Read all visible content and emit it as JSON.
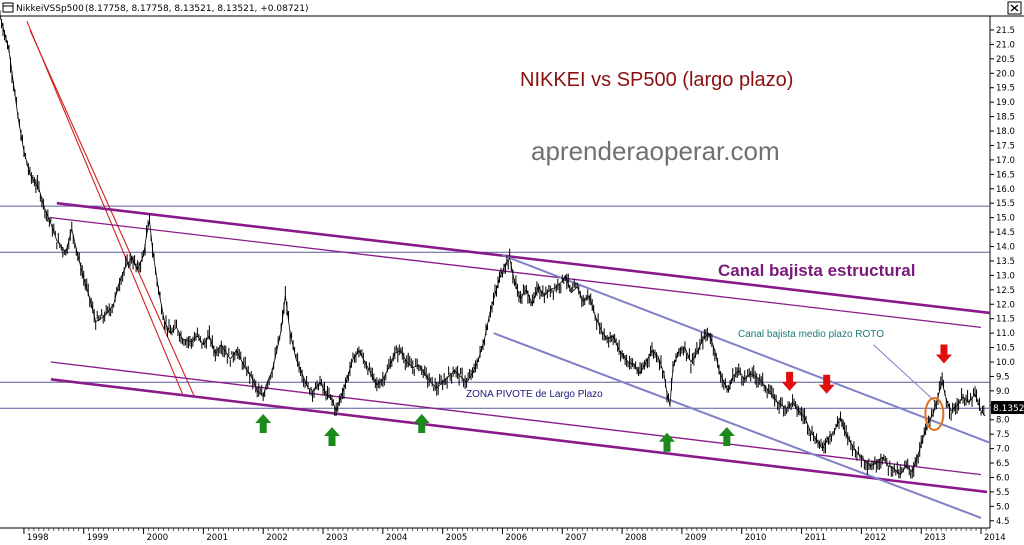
{
  "window": {
    "title": "NikkeiVSSp500",
    "ohlc_readout": "(8.17758, 8.17758, 8.13521, 8.13521, +0.08721)",
    "close_icon": "close-icon"
  },
  "price_tag": "8.1352",
  "chart_data": {
    "type": "line",
    "style": "ohlc-bars",
    "title": "NIKKEI vs SP500 (largo plazo)",
    "watermark": "aprenderaoperar.com",
    "x_axis": {
      "labels": [
        "1998",
        "1999",
        "2000",
        "2001",
        "2002",
        "2003",
        "2004",
        "2005",
        "2006",
        "2007",
        "2008",
        "2009",
        "2010",
        "2011",
        "2012",
        "2013",
        "2014"
      ],
      "range": [
        1997.6,
        2014.15
      ]
    },
    "y_axis": {
      "side": "right",
      "range": [
        4.25,
        21.95
      ],
      "ticks": [
        "4.5",
        "5.0",
        "5.5",
        "6.0",
        "6.5",
        "7.0",
        "7.5",
        "8.0",
        "8.5",
        "9.0",
        "9.5",
        "10.0",
        "10.5",
        "11.0",
        "11.5",
        "12.0",
        "12.5",
        "13.0",
        "13.5",
        "14.0",
        "14.5",
        "15.0",
        "15.5",
        "16.0",
        "16.5",
        "17.0",
        "17.5",
        "18.0",
        "18.5",
        "19.0",
        "19.5",
        "20.0",
        "20.5",
        "21.0",
        "21.5"
      ],
      "grid": false
    },
    "colors": {
      "price": "#000000",
      "red_trend": "#d02020",
      "structural_channel": "#8a1a8a",
      "medium_channel": "#8080c8",
      "horizontal_levels": "#5a5a9a",
      "arrow_up": "#1a8a1a",
      "arrow_down": "#e01010",
      "circle": "#e07020",
      "title": "#8a1010",
      "watermark": "#707070",
      "annotation_structural": "#7a1a7a",
      "annotation_medium": "#1a7a7a",
      "annotation_pivot": "#1a1a7a"
    },
    "series": [
      {
        "points": [
          [
            1997.6,
            22.0
          ],
          [
            1997.75,
            20.8
          ],
          [
            1997.9,
            18.5
          ],
          [
            1998.0,
            17.3
          ],
          [
            1998.1,
            16.5
          ],
          [
            1998.25,
            16.0
          ],
          [
            1998.35,
            15.3
          ],
          [
            1998.45,
            14.8
          ],
          [
            1998.55,
            14.2
          ],
          [
            1998.7,
            13.8
          ],
          [
            1998.8,
            14.6
          ],
          [
            1998.9,
            13.7
          ],
          [
            1999.0,
            12.9
          ],
          [
            1999.1,
            12.2
          ],
          [
            1999.2,
            11.4
          ],
          [
            1999.35,
            11.6
          ],
          [
            1999.5,
            12.0
          ],
          [
            1999.6,
            12.8
          ],
          [
            1999.7,
            13.3
          ],
          [
            1999.8,
            13.6
          ],
          [
            1999.9,
            13.2
          ],
          [
            2000.0,
            13.7
          ],
          [
            2000.05,
            14.4
          ],
          [
            2000.1,
            14.9
          ],
          [
            2000.15,
            13.9
          ],
          [
            2000.25,
            12.5
          ],
          [
            2000.35,
            11.4
          ],
          [
            2000.45,
            11.0
          ],
          [
            2000.55,
            11.2
          ],
          [
            2000.65,
            10.8
          ],
          [
            2000.8,
            10.7
          ],
          [
            2000.9,
            10.9
          ],
          [
            2001.0,
            10.6
          ],
          [
            2001.1,
            10.9
          ],
          [
            2001.2,
            10.3
          ],
          [
            2001.3,
            10.6
          ],
          [
            2001.45,
            10.1
          ],
          [
            2001.55,
            10.4
          ],
          [
            2001.7,
            9.8
          ],
          [
            2001.8,
            9.5
          ],
          [
            2001.9,
            9.0
          ],
          [
            2002.0,
            8.8
          ],
          [
            2002.05,
            9.2
          ],
          [
            2002.15,
            9.7
          ],
          [
            2002.25,
            10.6
          ],
          [
            2002.3,
            11.1
          ],
          [
            2002.37,
            12.3
          ],
          [
            2002.45,
            11.0
          ],
          [
            2002.55,
            10.1
          ],
          [
            2002.65,
            9.6
          ],
          [
            2002.75,
            9.1
          ],
          [
            2002.85,
            9.0
          ],
          [
            2002.95,
            9.3
          ],
          [
            2003.05,
            8.9
          ],
          [
            2003.15,
            8.7
          ],
          [
            2003.22,
            8.3
          ],
          [
            2003.3,
            8.8
          ],
          [
            2003.4,
            9.4
          ],
          [
            2003.5,
            10.1
          ],
          [
            2003.6,
            10.4
          ],
          [
            2003.7,
            10.0
          ],
          [
            2003.8,
            9.6
          ],
          [
            2003.9,
            9.2
          ],
          [
            2004.0,
            9.4
          ],
          [
            2004.1,
            9.8
          ],
          [
            2004.2,
            10.3
          ],
          [
            2004.3,
            10.4
          ],
          [
            2004.4,
            10.0
          ],
          [
            2004.5,
            9.8
          ],
          [
            2004.6,
            9.9
          ],
          [
            2004.7,
            9.6
          ],
          [
            2004.8,
            9.3
          ],
          [
            2004.9,
            9.1
          ],
          [
            2005.0,
            9.3
          ],
          [
            2005.1,
            9.5
          ],
          [
            2005.2,
            9.7
          ],
          [
            2005.3,
            9.5
          ],
          [
            2005.4,
            9.3
          ],
          [
            2005.5,
            9.6
          ],
          [
            2005.6,
            10.1
          ],
          [
            2005.7,
            10.8
          ],
          [
            2005.8,
            11.8
          ],
          [
            2005.9,
            12.5
          ],
          [
            2005.95,
            12.9
          ],
          [
            2006.05,
            13.4
          ],
          [
            2006.12,
            13.6
          ],
          [
            2006.2,
            12.8
          ],
          [
            2006.3,
            12.2
          ],
          [
            2006.4,
            12.5
          ],
          [
            2006.5,
            12.0
          ],
          [
            2006.6,
            12.6
          ],
          [
            2006.7,
            12.3
          ],
          [
            2006.8,
            12.5
          ],
          [
            2006.9,
            12.6
          ],
          [
            2007.0,
            12.8
          ],
          [
            2007.05,
            13.0
          ],
          [
            2007.15,
            12.4
          ],
          [
            2007.25,
            12.6
          ],
          [
            2007.35,
            12.1
          ],
          [
            2007.45,
            12.3
          ],
          [
            2007.55,
            11.6
          ],
          [
            2007.65,
            11.1
          ],
          [
            2007.75,
            10.8
          ],
          [
            2007.85,
            10.9
          ],
          [
            2007.95,
            10.4
          ],
          [
            2008.1,
            10.0
          ],
          [
            2008.2,
            9.9
          ],
          [
            2008.3,
            9.6
          ],
          [
            2008.4,
            10.0
          ],
          [
            2008.5,
            10.4
          ],
          [
            2008.6,
            10.2
          ],
          [
            2008.7,
            9.6
          ],
          [
            2008.75,
            8.9
          ],
          [
            2008.8,
            8.5
          ],
          [
            2008.85,
            9.8
          ],
          [
            2008.95,
            10.4
          ],
          [
            2009.05,
            10.5
          ],
          [
            2009.15,
            10.0
          ],
          [
            2009.25,
            10.3
          ],
          [
            2009.35,
            10.8
          ],
          [
            2009.45,
            11.0
          ],
          [
            2009.55,
            10.4
          ],
          [
            2009.62,
            9.7
          ],
          [
            2009.7,
            9.3
          ],
          [
            2009.78,
            9.0
          ],
          [
            2009.85,
            9.5
          ],
          [
            2009.95,
            9.7
          ],
          [
            2010.05,
            9.4
          ],
          [
            2010.15,
            9.6
          ],
          [
            2010.3,
            9.4
          ],
          [
            2010.45,
            9.0
          ],
          [
            2010.6,
            8.6
          ],
          [
            2010.75,
            8.4
          ],
          [
            2010.85,
            8.6
          ],
          [
            2010.95,
            8.3
          ],
          [
            2011.05,
            8.1
          ],
          [
            2011.15,
            7.6
          ],
          [
            2011.25,
            7.3
          ],
          [
            2011.35,
            7.0
          ],
          [
            2011.45,
            7.4
          ],
          [
            2011.55,
            7.6
          ],
          [
            2011.65,
            8.1
          ],
          [
            2011.72,
            7.6
          ],
          [
            2011.85,
            7.1
          ],
          [
            2011.95,
            6.8
          ],
          [
            2012.05,
            6.6
          ],
          [
            2012.15,
            6.4
          ],
          [
            2012.25,
            6.5
          ],
          [
            2012.35,
            6.7
          ],
          [
            2012.45,
            6.4
          ],
          [
            2012.55,
            6.3
          ],
          [
            2012.65,
            6.1
          ],
          [
            2012.75,
            6.4
          ],
          [
            2012.85,
            6.2
          ],
          [
            2012.95,
            6.8
          ],
          [
            2013.05,
            7.5
          ],
          [
            2013.12,
            7.9
          ],
          [
            2013.2,
            8.2
          ],
          [
            2013.28,
            8.8
          ],
          [
            2013.35,
            9.3
          ],
          [
            2013.42,
            8.7
          ],
          [
            2013.5,
            8.3
          ],
          [
            2013.6,
            8.5
          ],
          [
            2013.7,
            8.8
          ],
          [
            2013.8,
            8.6
          ],
          [
            2013.9,
            8.9
          ],
          [
            2014.0,
            8.3
          ],
          [
            2014.07,
            8.1352
          ]
        ]
      }
    ],
    "horizontal_levels": [
      15.4,
      13.8,
      9.3,
      8.4
    ],
    "trend_lines": [
      {
        "group": "red",
        "from": [
          1998.1,
          21.5
        ],
        "to": [
          2000.85,
          8.8
        ]
      },
      {
        "group": "red",
        "from": [
          1998.05,
          21.8
        ],
        "to": [
          2000.65,
          8.9
        ]
      },
      {
        "group": "structural",
        "from": [
          1998.55,
          15.5
        ],
        "to": [
          2014.15,
          11.7
        ]
      },
      {
        "group": "structural_thin",
        "from": [
          1998.45,
          15.0
        ],
        "to": [
          2014.0,
          11.2
        ]
      },
      {
        "group": "structural",
        "from": [
          1998.45,
          9.4
        ],
        "to": [
          2014.1,
          5.5
        ]
      },
      {
        "group": "structural_thin",
        "from": [
          1998.45,
          10.0
        ],
        "to": [
          2014.0,
          6.1
        ]
      },
      {
        "group": "medium",
        "from": [
          2006.0,
          13.7
        ],
        "to": [
          2014.15,
          7.2
        ]
      },
      {
        "group": "medium",
        "from": [
          2005.85,
          11.0
        ],
        "to": [
          2014.0,
          4.6
        ]
      },
      {
        "group": "medium_thin",
        "from": [
          2012.2,
          10.6
        ],
        "to": [
          2013.25,
          8.6
        ]
      }
    ],
    "annotations": {
      "canal_structural": "Canal bajista estructural",
      "canal_medium": "Canal bajista medio plazo ROTO",
      "zona_pivote": "ZONA PIVOTE de Largo Plazo"
    },
    "up_arrows": [
      {
        "x": 2002.0,
        "y": 8.2
      },
      {
        "x": 2003.15,
        "y": 7.75
      },
      {
        "x": 2004.65,
        "y": 8.2
      },
      {
        "x": 2008.75,
        "y": 7.55
      },
      {
        "x": 2009.75,
        "y": 7.75
      }
    ],
    "down_arrows": [
      {
        "x": 2010.8,
        "y": 9.0
      },
      {
        "x": 2011.42,
        "y": 8.9
      },
      {
        "x": 2013.38,
        "y": 9.95
      }
    ],
    "circle": {
      "x": 2013.22,
      "y": 8.2
    }
  }
}
